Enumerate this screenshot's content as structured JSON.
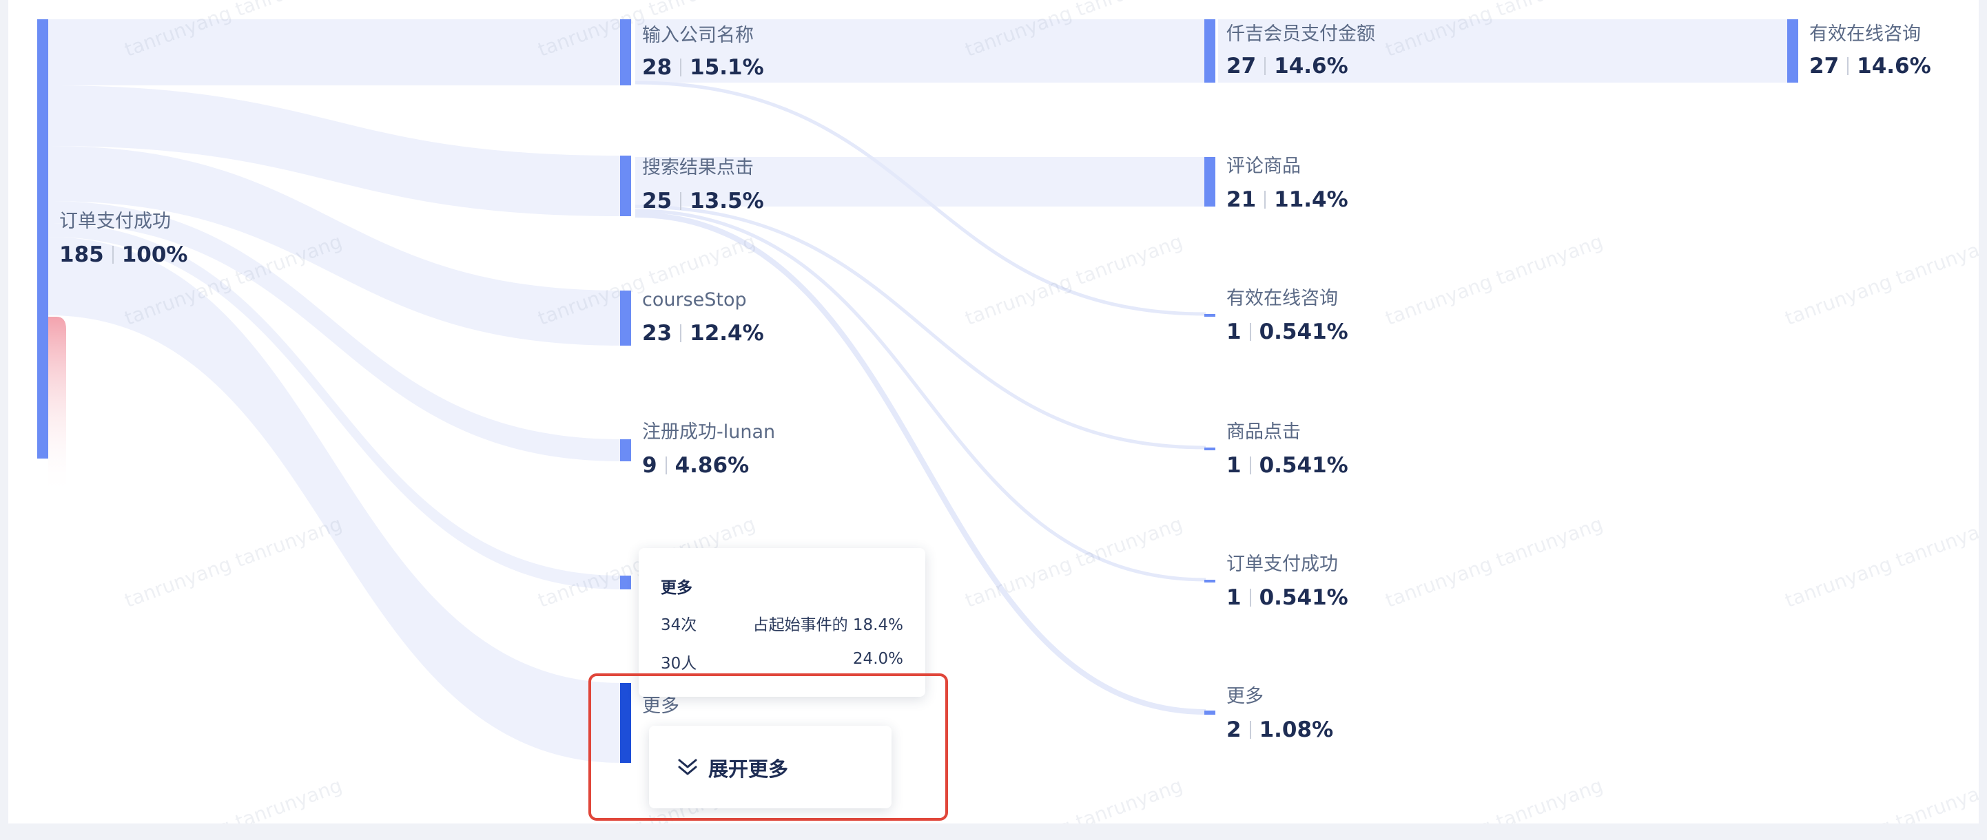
{
  "watermark": "tanrunyang tanrunyang",
  "nodes": {
    "root": {
      "label": "订单支付成功",
      "count": "185",
      "percent": "100%"
    },
    "s1_n1": {
      "label": "输入公司名称",
      "count": "28",
      "percent": "15.1%"
    },
    "s1_n2": {
      "label": "搜索结果点击",
      "count": "25",
      "percent": "13.5%"
    },
    "s1_n3": {
      "label": "courseStop",
      "count": "23",
      "percent": "12.4%"
    },
    "s1_n4": {
      "label": "注册成功-lunan",
      "count": "9",
      "percent": "4.86%"
    },
    "s1_more": {
      "label": "更多"
    },
    "s2_n1": {
      "label": "仟吉会员支付金额",
      "count": "27",
      "percent": "14.6%"
    },
    "s2_n2": {
      "label": "评论商品",
      "count": "21",
      "percent": "11.4%"
    },
    "s2_n3": {
      "label": "有效在线咨询",
      "count": "1",
      "percent": "0.541%"
    },
    "s2_n4": {
      "label": "商品点击",
      "count": "1",
      "percent": "0.541%"
    },
    "s2_n5": {
      "label": "订单支付成功",
      "count": "1",
      "percent": "0.541%"
    },
    "s2_more": {
      "label": "更多",
      "count": "2",
      "percent": "1.08%"
    },
    "s3_n1": {
      "label": "有效在线咨询",
      "count": "27",
      "percent": "14.6%"
    }
  },
  "tooltip": {
    "title": "更多",
    "times": "34次",
    "times_ratio": "占起始事件的 18.4%",
    "users": "30人",
    "users_ratio": "24.0%"
  },
  "expand_button": {
    "label": "展开更多"
  },
  "colors": {
    "node": "#6b8cf5",
    "node_dark": "#1d4ed8",
    "flow": "#e9edfb",
    "churn": "#f3a3ae",
    "highlight": "#e0463a"
  }
}
